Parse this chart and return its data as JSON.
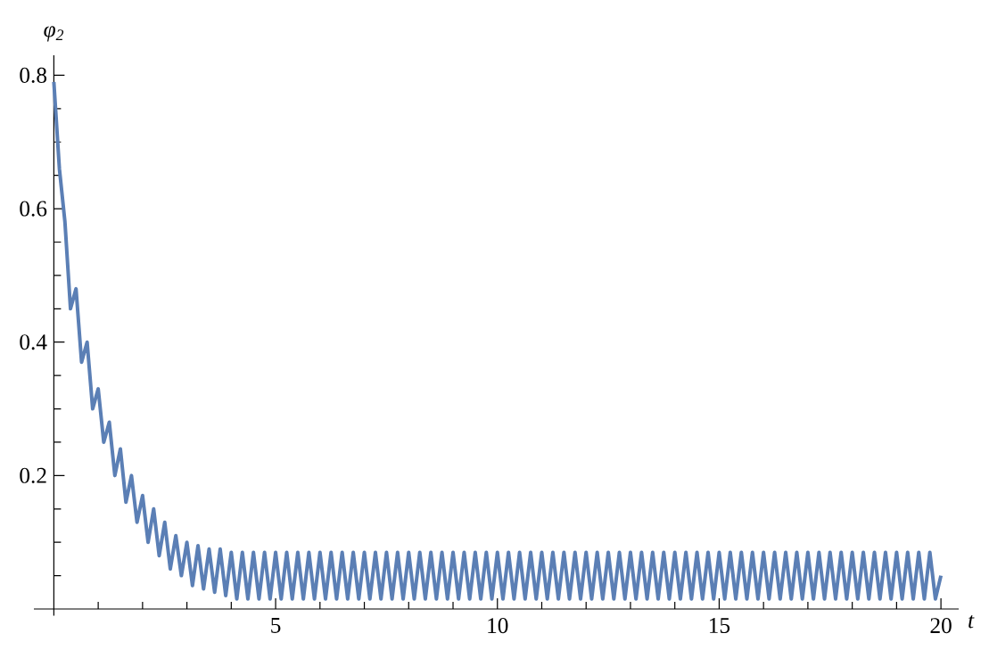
{
  "chart_data": {
    "type": "line",
    "xlabel": "t",
    "ylabel": "φ$_{2}$",
    "xlim": [
      -0.45,
      20.4
    ],
    "ylim": [
      -0.01,
      0.83
    ],
    "xticks": [
      {
        "value": 1,
        "label": null
      },
      {
        "value": 2,
        "label": null
      },
      {
        "value": 3,
        "label": null
      },
      {
        "value": 4,
        "label": null
      },
      5,
      {
        "value": 6,
        "label": null
      },
      {
        "value": 7,
        "label": null
      },
      {
        "value": 8,
        "label": null
      },
      {
        "value": 9,
        "label": null
      },
      10,
      {
        "value": 11,
        "label": null
      },
      {
        "value": 12,
        "label": null
      },
      {
        "value": 13,
        "label": null
      },
      {
        "value": 14,
        "label": null
      },
      15,
      {
        "value": 16,
        "label": null
      },
      {
        "value": 17,
        "label": null
      },
      {
        "value": 18,
        "label": null
      },
      {
        "value": 19,
        "label": null
      },
      20
    ],
    "yticks": [
      {
        "value": 0.05,
        "label": null
      },
      {
        "value": 0.1,
        "label": null
      },
      {
        "value": 0.15,
        "label": null
      },
      0.2,
      {
        "value": 0.25,
        "label": null
      },
      {
        "value": 0.3,
        "label": null
      },
      {
        "value": 0.35,
        "label": null
      },
      0.4,
      {
        "value": 0.45,
        "label": null
      },
      {
        "value": 0.5,
        "label": null
      },
      {
        "value": 0.55,
        "label": null
      },
      0.6,
      {
        "value": 0.65,
        "label": null
      },
      {
        "value": 0.7,
        "label": null
      },
      {
        "value": 0.75,
        "label": null
      },
      0.8
    ],
    "series": [
      {
        "color": "#5b7fb5",
        "x": [
          0,
          0.125,
          0.25,
          0.375,
          0.5,
          0.625,
          0.75,
          0.875,
          1,
          1.125,
          1.25,
          1.375,
          1.5,
          1.625,
          1.75,
          1.875,
          2,
          2.125,
          2.25,
          2.375,
          2.5,
          2.625,
          2.75,
          2.875,
          3,
          3.125,
          3.25,
          3.375,
          3.5,
          3.625,
          3.75,
          3.875,
          4,
          4.125,
          4.25,
          4.375,
          4.5,
          4.625,
          4.75,
          4.875,
          5,
          5.125,
          5.25,
          5.375,
          5.5,
          5.625,
          5.75,
          5.875,
          6,
          6.125,
          6.25,
          6.375,
          6.5,
          6.625,
          6.75,
          6.875,
          7,
          7.125,
          7.25,
          7.375,
          7.5,
          7.625,
          7.75,
          7.875,
          8,
          8.125,
          8.25,
          8.375,
          8.5,
          8.625,
          8.75,
          8.875,
          9,
          9.125,
          9.25,
          9.375,
          9.5,
          9.625,
          9.75,
          9.875,
          10,
          10.125,
          10.25,
          10.375,
          10.5,
          10.625,
          10.75,
          10.875,
          11,
          11.125,
          11.25,
          11.375,
          11.5,
          11.625,
          11.75,
          11.875,
          12,
          12.125,
          12.25,
          12.375,
          12.5,
          12.625,
          12.75,
          12.875,
          13,
          13.125,
          13.25,
          13.375,
          13.5,
          13.625,
          13.75,
          13.875,
          14,
          14.125,
          14.25,
          14.375,
          14.5,
          14.625,
          14.75,
          14.875,
          15,
          15.125,
          15.25,
          15.375,
          15.5,
          15.625,
          15.75,
          15.875,
          16,
          16.125,
          16.25,
          16.375,
          16.5,
          16.625,
          16.75,
          16.875,
          17,
          17.125,
          17.25,
          17.375,
          17.5,
          17.625,
          17.75,
          17.875,
          18,
          18.125,
          18.25,
          18.375,
          18.5,
          18.625,
          18.75,
          18.875,
          19,
          19.125,
          19.25,
          19.375,
          19.5,
          19.625,
          19.75,
          19.875,
          20
        ],
        "values": [
          0.79,
          0.66,
          0.58,
          0.45,
          0.48,
          0.37,
          0.4,
          0.3,
          0.33,
          0.25,
          0.28,
          0.2,
          0.24,
          0.16,
          0.2,
          0.13,
          0.17,
          0.1,
          0.15,
          0.08,
          0.13,
          0.06,
          0.11,
          0.05,
          0.1,
          0.035,
          0.095,
          0.03,
          0.09,
          0.025,
          0.09,
          0.02,
          0.085,
          0.015,
          0.085,
          0.015,
          0.085,
          0.015,
          0.085,
          0.015,
          0.085,
          0.015,
          0.085,
          0.015,
          0.085,
          0.015,
          0.085,
          0.015,
          0.085,
          0.015,
          0.085,
          0.015,
          0.085,
          0.015,
          0.085,
          0.015,
          0.085,
          0.015,
          0.085,
          0.015,
          0.085,
          0.015,
          0.085,
          0.015,
          0.085,
          0.015,
          0.085,
          0.015,
          0.085,
          0.015,
          0.085,
          0.015,
          0.085,
          0.015,
          0.085,
          0.015,
          0.085,
          0.015,
          0.085,
          0.015,
          0.085,
          0.015,
          0.085,
          0.015,
          0.085,
          0.015,
          0.085,
          0.015,
          0.085,
          0.015,
          0.085,
          0.015,
          0.085,
          0.015,
          0.085,
          0.015,
          0.085,
          0.015,
          0.085,
          0.015,
          0.085,
          0.015,
          0.085,
          0.015,
          0.085,
          0.015,
          0.085,
          0.015,
          0.085,
          0.015,
          0.085,
          0.015,
          0.085,
          0.015,
          0.085,
          0.015,
          0.085,
          0.015,
          0.085,
          0.015,
          0.085,
          0.015,
          0.085,
          0.015,
          0.085,
          0.015,
          0.085,
          0.015,
          0.085,
          0.015,
          0.085,
          0.015,
          0.085,
          0.015,
          0.085,
          0.015,
          0.085,
          0.015,
          0.085,
          0.015,
          0.085,
          0.015,
          0.085,
          0.015,
          0.085,
          0.015,
          0.085,
          0.015,
          0.085,
          0.015,
          0.085,
          0.015,
          0.085,
          0.015,
          0.085,
          0.015,
          0.085,
          0.015,
          0.085,
          0.015,
          0.05
        ]
      }
    ]
  }
}
